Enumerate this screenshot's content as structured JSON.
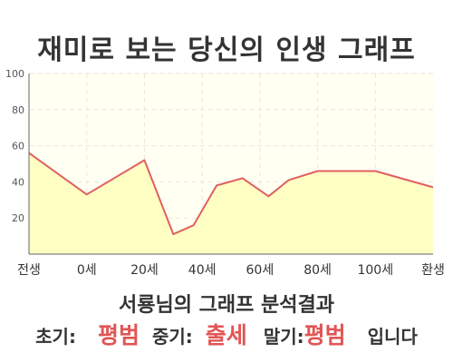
{
  "title": "재미로 보는 당신의 인생 그래프",
  "chart_data": {
    "type": "area",
    "x_labels": [
      "전생",
      "0세",
      "20세",
      "40세",
      "60세",
      "80세",
      "100세",
      "환생"
    ],
    "y_ticks": [
      20,
      40,
      60,
      80,
      100
    ],
    "ylim": [
      0,
      100
    ],
    "grid": true,
    "x": [
      0,
      1,
      2,
      2.5,
      2.85,
      3.25,
      3.7,
      4.15,
      4.5,
      5,
      6,
      7
    ],
    "values": [
      56,
      33,
      52,
      11,
      16,
      38,
      42,
      32,
      41,
      46,
      46,
      37
    ],
    "colors": {
      "line": "#e06060",
      "fill": "#ffffc4",
      "plot_bg": "#fffff2",
      "grid": "#e6e6e0"
    }
  },
  "analysis": {
    "heading": "서룡님의 그래프 분석결과",
    "early_label": "초기:",
    "early_value": "평범",
    "middle_label": "중기:",
    "middle_value": "출세",
    "late_label": "말기:",
    "late_value": "평범",
    "suffix": "입니다"
  }
}
